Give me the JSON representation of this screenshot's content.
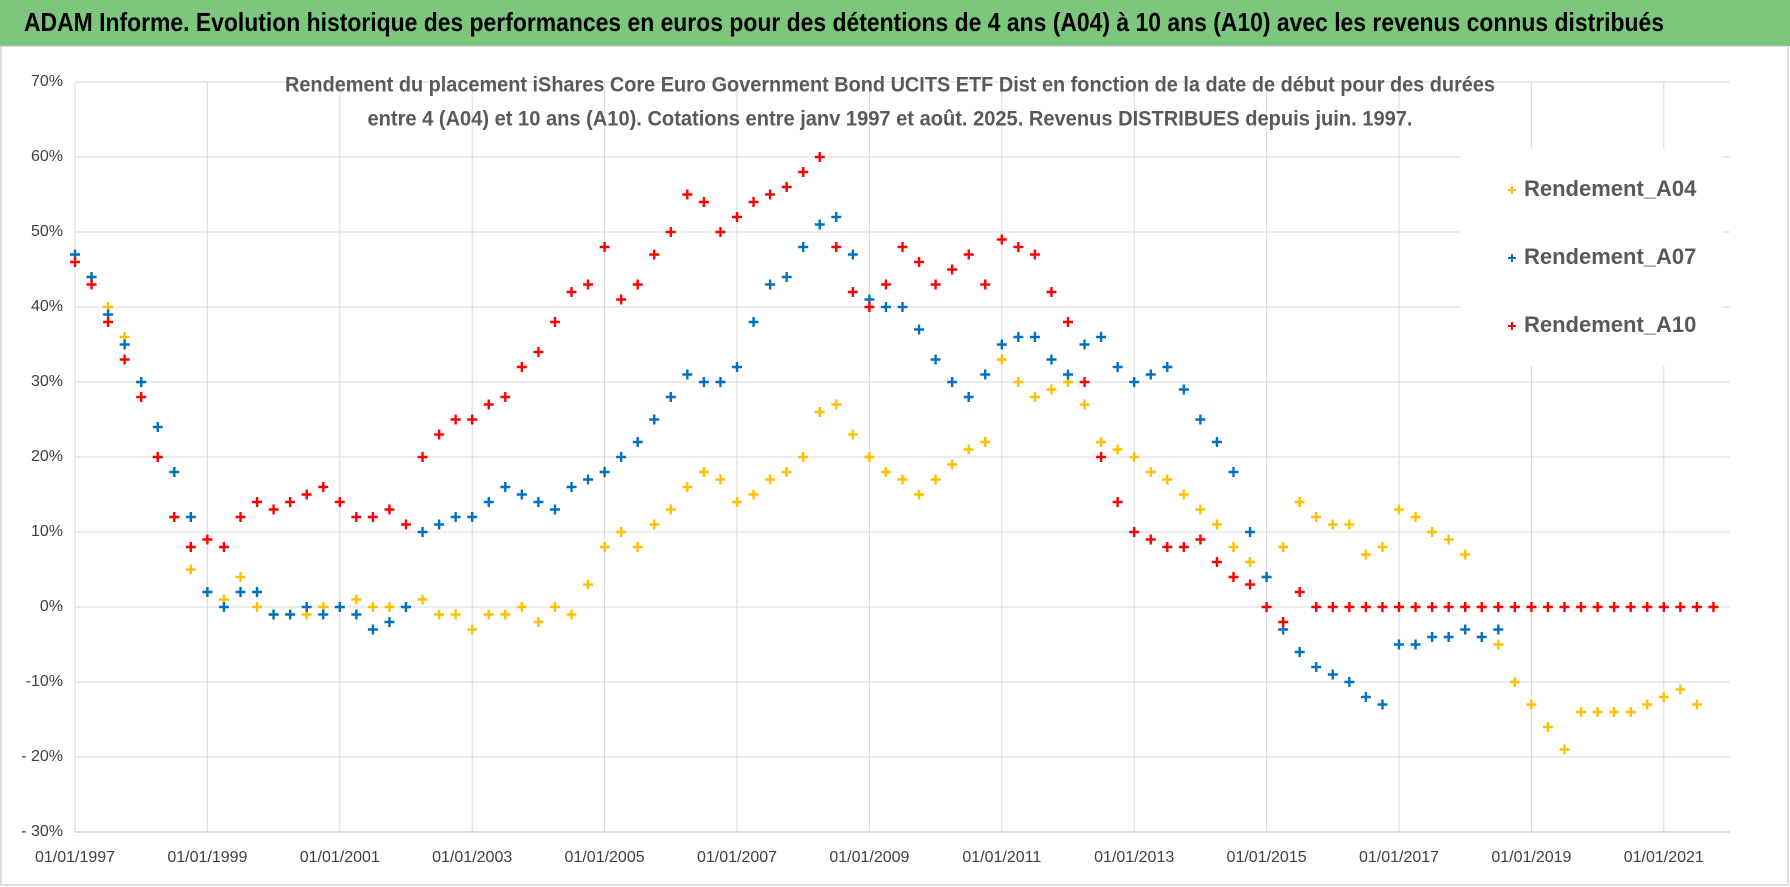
{
  "chart_data": {
    "type": "scatter",
    "title": "ADAM Informe. Evolution historique des performances en euros pour des détentions de 4 ans (A04) à 10 ans (A10) avec les revenus connus distribués",
    "subtitle": [
      "Rendement du placement iShares Core Euro Government Bond UCITS ETF Dist en fonction de la date de début pour des durées",
      "entre 4 (A04) et 10 ans (A10). Cotations entre janv 1997 et août. 2025. Revenus DISTRIBUES depuis juin. 1997."
    ],
    "x": [
      "01/01/1997",
      "01/04/1997",
      "01/07/1997",
      "01/10/1997",
      "01/01/1998",
      "01/04/1998",
      "01/07/1998",
      "01/10/1998",
      "01/01/1999",
      "01/04/1999",
      "01/07/1999",
      "01/10/1999",
      "01/01/2000",
      "01/04/2000",
      "01/07/2000",
      "01/10/2000",
      "01/01/2001",
      "01/04/2001",
      "01/07/2001",
      "01/10/2001",
      "01/01/2002",
      "01/04/2002",
      "01/07/2002",
      "01/10/2002",
      "01/01/2003",
      "01/04/2003",
      "01/07/2003",
      "01/10/2003",
      "01/01/2004",
      "01/04/2004",
      "01/07/2004",
      "01/10/2004",
      "01/01/2005",
      "01/04/2005",
      "01/07/2005",
      "01/10/2005",
      "01/01/2006",
      "01/04/2006",
      "01/07/2006",
      "01/10/2006",
      "01/01/2007",
      "01/04/2007",
      "01/07/2007",
      "01/10/2007",
      "01/01/2008",
      "01/04/2008",
      "01/07/2008",
      "01/10/2008",
      "01/01/2009",
      "01/04/2009",
      "01/07/2009",
      "01/10/2009",
      "01/01/2010",
      "01/04/2010",
      "01/07/2010",
      "01/10/2010",
      "01/01/2011",
      "01/04/2011",
      "01/07/2011",
      "01/10/2011",
      "01/01/2012",
      "01/04/2012",
      "01/07/2012",
      "01/10/2012",
      "01/01/2013",
      "01/04/2013",
      "01/07/2013",
      "01/10/2013",
      "01/01/2014",
      "01/04/2014",
      "01/07/2014",
      "01/10/2014",
      "01/01/2015",
      "01/04/2015",
      "01/07/2015",
      "01/10/2015",
      "01/01/2016",
      "01/04/2016",
      "01/07/2016",
      "01/10/2016",
      "01/01/2017",
      "01/04/2017",
      "01/07/2017",
      "01/10/2017",
      "01/01/2018",
      "01/04/2018",
      "01/07/2018",
      "01/10/2018",
      "01/01/2019",
      "01/04/2019",
      "01/07/2019",
      "01/10/2019",
      "01/01/2020",
      "01/04/2020",
      "01/07/2020",
      "01/10/2020",
      "01/01/2021",
      "01/04/2021",
      "01/07/2021",
      "01/10/2021"
    ],
    "series": [
      {
        "name": "Rendement_A04",
        "color": "#ffc000",
        "values": [
          47,
          44,
          40,
          36,
          30,
          20,
          12,
          5,
          2,
          1,
          4,
          0,
          -1,
          -1,
          -1,
          0,
          0,
          1,
          0,
          0,
          0,
          1,
          -1,
          -1,
          -3,
          -1,
          -1,
          0,
          -2,
          0,
          -1,
          3,
          8,
          10,
          8,
          11,
          13,
          16,
          18,
          17,
          14,
          15,
          17,
          18,
          20,
          26,
          27,
          23,
          20,
          18,
          17,
          15,
          17,
          19,
          21,
          22,
          33,
          30,
          28,
          29,
          30,
          27,
          22,
          21,
          20,
          18,
          17,
          15,
          13,
          11,
          8,
          6,
          4,
          8,
          14,
          12,
          11,
          11,
          7,
          8,
          13,
          12,
          10,
          9,
          7,
          0,
          -5,
          -10,
          -13,
          -16,
          -19,
          -14,
          -14,
          -14,
          -14,
          -13,
          -12,
          -11,
          -13,
          null
        ]
      },
      {
        "name": "Rendement_A07",
        "color": "#0070c0",
        "values": [
          47,
          44,
          39,
          35,
          30,
          24,
          18,
          12,
          2,
          0,
          2,
          2,
          -1,
          -1,
          0,
          -1,
          0,
          -1,
          -3,
          -2,
          0,
          10,
          11,
          12,
          12,
          14,
          16,
          15,
          14,
          13,
          16,
          17,
          18,
          20,
          22,
          25,
          28,
          31,
          30,
          30,
          32,
          38,
          43,
          44,
          48,
          51,
          52,
          47,
          41,
          40,
          40,
          37,
          33,
          30,
          28,
          31,
          35,
          36,
          36,
          33,
          31,
          35,
          36,
          32,
          30,
          31,
          32,
          29,
          25,
          22,
          18,
          10,
          4,
          -3,
          -6,
          -8,
          -9,
          -10,
          -12,
          -13,
          -5,
          -5,
          -4,
          -4,
          -3,
          -4,
          -3,
          null,
          null,
          null,
          null,
          null,
          null,
          null,
          null,
          null,
          null,
          null,
          null,
          null
        ]
      },
      {
        "name": "Rendement_A10",
        "color": "#ff0000",
        "values": [
          46,
          43,
          38,
          33,
          28,
          20,
          12,
          8,
          9,
          8,
          12,
          14,
          13,
          14,
          15,
          16,
          14,
          12,
          12,
          13,
          11,
          20,
          23,
          25,
          25,
          27,
          28,
          32,
          34,
          38,
          42,
          43,
          48,
          41,
          43,
          47,
          50,
          55,
          54,
          50,
          52,
          54,
          55,
          56,
          58,
          60,
          48,
          42,
          40,
          43,
          48,
          46,
          43,
          45,
          47,
          43,
          49,
          48,
          47,
          42,
          38,
          30,
          20,
          14,
          10,
          9,
          8,
          8,
          9,
          6,
          4,
          3,
          0,
          -2,
          2,
          0,
          0,
          0,
          0,
          0,
          0,
          0,
          0,
          0,
          0,
          0,
          0,
          0,
          0,
          0,
          0,
          0,
          0,
          0,
          0,
          0,
          0,
          0,
          0,
          0
        ]
      }
    ],
    "xlim": [
      "01/01/1997",
      "01/01/2022"
    ],
    "xticks": [
      "01/01/1997",
      "01/01/1999",
      "01/01/2001",
      "01/01/2003",
      "01/01/2005",
      "01/01/2007",
      "01/01/2009",
      "01/01/2011",
      "01/01/2013",
      "01/01/2015",
      "01/01/2017",
      "01/01/2019",
      "01/01/2021"
    ],
    "ylim": [
      -30,
      70
    ],
    "yticks": [
      {
        "value": -30,
        "label": "- 30%"
      },
      {
        "value": -20,
        "label": "- 20%"
      },
      {
        "value": -10,
        "label": "-10%"
      },
      {
        "value": 0,
        "label": "0%"
      },
      {
        "value": 10,
        "label": "10%"
      },
      {
        "value": 20,
        "label": "20%"
      },
      {
        "value": 30,
        "label": "30%"
      },
      {
        "value": 40,
        "label": "40%"
      },
      {
        "value": 50,
        "label": "50%"
      },
      {
        "value": 60,
        "label": "60%"
      },
      {
        "value": 70,
        "label": "70%"
      }
    ],
    "grid": true,
    "legend": "right"
  }
}
